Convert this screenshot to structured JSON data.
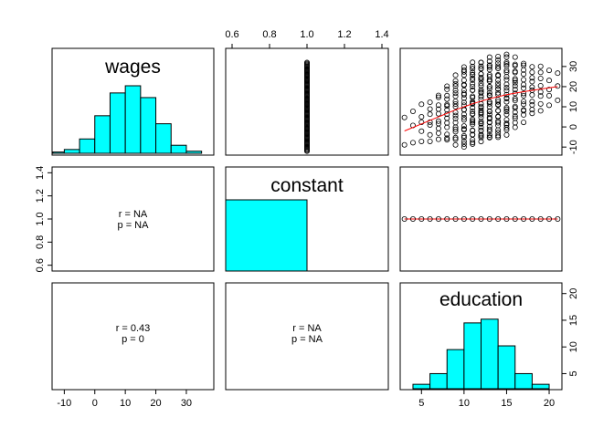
{
  "chart_data": {
    "type": "scatter-matrix",
    "variables": [
      "wages",
      "constant",
      "education"
    ],
    "colors": {
      "hist_fill": "#00FFFF",
      "smooth_line": "#FF0000",
      "points": "#000000"
    },
    "panels": {
      "wages_hist": {
        "type": "bar",
        "title": "wages",
        "xlim": [
          -14,
          39
        ],
        "bins": [
          {
            "from": -15,
            "to": -10,
            "count": 3
          },
          {
            "from": -10,
            "to": -5,
            "count": 9
          },
          {
            "from": -5,
            "to": 0,
            "count": 34
          },
          {
            "from": 0,
            "to": 5,
            "count": 89
          },
          {
            "from": 5,
            "to": 10,
            "count": 143
          },
          {
            "from": 10,
            "to": 15,
            "count": 160
          },
          {
            "from": 15,
            "to": 20,
            "count": 132
          },
          {
            "from": 20,
            "to": 25,
            "count": 70
          },
          {
            "from": 25,
            "to": 30,
            "count": 19
          },
          {
            "from": 30,
            "to": 35,
            "count": 5
          }
        ]
      },
      "constant_vs_wages": {
        "type": "scatter",
        "xlim": [
          0.6,
          1.4
        ],
        "x_ticks": [
          "0.6",
          "0.8",
          "1.0",
          "1.2",
          "1.4"
        ],
        "x_values": [
          0.6,
          0.8,
          1.0,
          1.2,
          1.4
        ],
        "x": 1.0,
        "y_from": -12,
        "y_to": 32
      },
      "education_vs_wages": {
        "type": "scatter",
        "xlim": [
          2.5,
          21.5
        ],
        "ylim": [
          -14,
          39
        ],
        "y_ticks": [
          "-10",
          "0",
          "10",
          "20",
          "30"
        ],
        "y_values": [
          -10,
          0,
          10,
          20,
          30
        ],
        "education_levels": [
          3,
          4,
          5,
          6,
          7,
          8,
          9,
          10,
          11,
          12,
          13,
          14,
          15,
          16,
          17,
          18,
          19,
          20,
          21
        ],
        "smooth": [
          [
            3,
            -2
          ],
          [
            5,
            1.5
          ],
          [
            7,
            5
          ],
          [
            9,
            8.5
          ],
          [
            11,
            11.5
          ],
          [
            13,
            14
          ],
          [
            15,
            16
          ],
          [
            17,
            17.5
          ],
          [
            19,
            18.8
          ],
          [
            21,
            20
          ]
        ]
      },
      "wages_constant_cor": {
        "r": "r = NA",
        "p": "p = NA",
        "ylim": [
          0.55,
          1.45
        ],
        "y_ticks": [
          "0.6",
          "0.8",
          "1.0",
          "1.2",
          "1.4"
        ],
        "y_values": [
          0.6,
          0.8,
          1.0,
          1.2,
          1.4
        ]
      },
      "constant_hist": {
        "type": "bar",
        "title": "constant",
        "xlim": [
          0.6,
          1.4
        ],
        "bins": [
          {
            "from": 0.6,
            "to": 1.0,
            "count": 1
          }
        ]
      },
      "education_vs_constant": {
        "type": "scatter",
        "xlim": [
          2.5,
          21.5
        ],
        "ylim": [
          0.6,
          1.4
        ],
        "y": 1.0,
        "x_points": [
          3,
          4,
          5,
          6,
          7,
          8,
          9,
          10,
          11,
          12,
          13,
          14,
          15,
          16,
          17,
          18,
          19,
          20,
          21
        ]
      },
      "wages_education_cor": {
        "r": "r = 0.43",
        "p": "p = 0",
        "xlim": [
          -14,
          39
        ],
        "x_ticks": [
          "-10",
          "0",
          "10",
          "20",
          "30"
        ],
        "x_values": [
          -10,
          0,
          10,
          20,
          30
        ]
      },
      "constant_education_cor": {
        "r": "r = NA",
        "p": "p = NA"
      },
      "education_hist": {
        "type": "bar",
        "title": "education",
        "xlim": [
          2.5,
          21.5
        ],
        "ylim": [
          2,
          22
        ],
        "x_ticks": [
          "5",
          "10",
          "15",
          "20"
        ],
        "x_values": [
          5,
          10,
          15,
          20
        ],
        "y_ticks": [
          "5",
          "10",
          "15",
          "20"
        ],
        "y_values": [
          5,
          10,
          15,
          20
        ],
        "bins": [
          {
            "from": 2,
            "to": 4,
            "count": 2
          },
          {
            "from": 4,
            "to": 6,
            "count": 3
          },
          {
            "from": 6,
            "to": 8,
            "count": 5
          },
          {
            "from": 8,
            "to": 10,
            "count": 9.5
          },
          {
            "from": 10,
            "to": 12,
            "count": 14.5
          },
          {
            "from": 12,
            "to": 14,
            "count": 15.2
          },
          {
            "from": 14,
            "to": 16,
            "count": 10.2
          },
          {
            "from": 16,
            "to": 18,
            "count": 5
          },
          {
            "from": 18,
            "to": 20,
            "count": 3
          },
          {
            "from": 20,
            "to": 22,
            "count": 0
          }
        ]
      }
    }
  }
}
